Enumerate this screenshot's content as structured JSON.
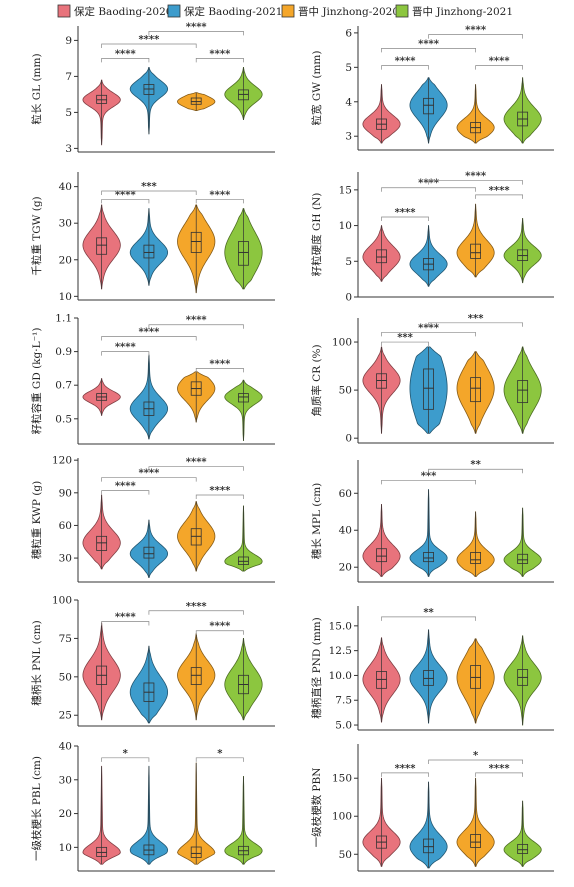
{
  "legend": {
    "items": [
      {
        "label": "保定 Baoding-2020",
        "color": "#e8737c"
      },
      {
        "label": "保定 Baoding-2021",
        "color": "#3d9ccc"
      },
      {
        "label": "晋中 Jinzhong-2020",
        "color": "#f4a62a"
      },
      {
        "label": "晋中 Jinzhong-2021",
        "color": "#8cc63f"
      }
    ]
  },
  "chart_data": [
    {
      "type": "violin",
      "ylabel": "粒长 GL (mm)",
      "ylim": [
        2.8,
        9.8
      ],
      "yticks": [
        3,
        5,
        7,
        9
      ],
      "groups": [
        {
          "name": "保定 Baoding-2020",
          "median": 5.7,
          "q1": 5.5,
          "q3": 5.95,
          "min": 3.2,
          "max": 6.8
        },
        {
          "name": "保定 Baoding-2021",
          "median": 6.3,
          "q1": 6.0,
          "q3": 6.55,
          "min": 3.8,
          "max": 7.5
        },
        {
          "name": "晋中 Jinzhong-2020",
          "median": 5.6,
          "q1": 5.45,
          "q3": 5.8,
          "min": 5.1,
          "max": 6.1
        },
        {
          "name": "晋中 Jinzhong-2021",
          "median": 6.0,
          "q1": 5.7,
          "q3": 6.25,
          "min": 4.6,
          "max": 7.5
        }
      ],
      "brackets": [
        {
          "from": 0,
          "to": 1,
          "y": 8.0,
          "label": "****"
        },
        {
          "from": 0,
          "to": 2,
          "y": 8.8,
          "label": "****"
        },
        {
          "from": 1,
          "to": 3,
          "y": 9.5,
          "label": "****"
        },
        {
          "from": 2,
          "to": 3,
          "y": 8.0,
          "label": "****"
        }
      ]
    },
    {
      "type": "violin",
      "ylabel": "粒宽 GW (mm)",
      "ylim": [
        2.6,
        6.2
      ],
      "yticks": [
        3,
        4,
        5,
        6
      ],
      "groups": [
        {
          "name": "保定 Baoding-2020",
          "median": 3.35,
          "q1": 3.2,
          "q3": 3.5,
          "min": 2.8,
          "max": 4.5
        },
        {
          "name": "保定 Baoding-2021",
          "median": 3.9,
          "q1": 3.65,
          "q3": 4.1,
          "min": 2.8,
          "max": 4.7
        },
        {
          "name": "晋中 Jinzhong-2020",
          "median": 3.25,
          "q1": 3.1,
          "q3": 3.4,
          "min": 2.8,
          "max": 4.5
        },
        {
          "name": "晋中 Jinzhong-2021",
          "median": 3.5,
          "q1": 3.3,
          "q3": 3.7,
          "min": 2.8,
          "max": 4.7
        }
      ],
      "brackets": [
        {
          "from": 0,
          "to": 1,
          "y": 5.05,
          "label": "****"
        },
        {
          "from": 0,
          "to": 2,
          "y": 5.55,
          "label": "****"
        },
        {
          "from": 1,
          "to": 3,
          "y": 5.95,
          "label": "****"
        },
        {
          "from": 2,
          "to": 3,
          "y": 5.05,
          "label": "****"
        }
      ]
    },
    {
      "type": "violin",
      "ylabel": "千粒重 TGW (g)",
      "ylim": [
        9,
        44
      ],
      "yticks": [
        10,
        20,
        30,
        40
      ],
      "groups": [
        {
          "name": "保定 Baoding-2020",
          "median": 24,
          "q1": 21.5,
          "q3": 26,
          "min": 12,
          "max": 35
        },
        {
          "name": "保定 Baoding-2021",
          "median": 22,
          "q1": 20.5,
          "q3": 24,
          "min": 13,
          "max": 34
        },
        {
          "name": "晋中 Jinzhong-2020",
          "median": 25,
          "q1": 22,
          "q3": 27.5,
          "min": 11,
          "max": 35
        },
        {
          "name": "晋中 Jinzhong-2021",
          "median": 22,
          "q1": 18.5,
          "q3": 25,
          "min": 12,
          "max": 34
        }
      ],
      "brackets": [
        {
          "from": 0,
          "to": 1,
          "y": 36.5,
          "label": "****"
        },
        {
          "from": 0,
          "to": 2,
          "y": 38.8,
          "label": "***"
        },
        {
          "from": 2,
          "to": 3,
          "y": 36.5,
          "label": "****"
        }
      ]
    },
    {
      "type": "violin",
      "ylabel": "籽粒硬度 GH (N)",
      "ylim": [
        0,
        17.5
      ],
      "yticks": [
        0,
        5,
        10,
        15
      ],
      "groups": [
        {
          "name": "保定 Baoding-2020",
          "median": 5.6,
          "q1": 4.8,
          "q3": 6.6,
          "min": 2.2,
          "max": 10
        },
        {
          "name": "保定 Baoding-2021",
          "median": 4.6,
          "q1": 3.8,
          "q3": 5.4,
          "min": 1.5,
          "max": 10
        },
        {
          "name": "晋中 Jinzhong-2020",
          "median": 6.2,
          "q1": 5.4,
          "q3": 7.4,
          "min": 2.8,
          "max": 13
        },
        {
          "name": "晋中 Jinzhong-2021",
          "median": 5.8,
          "q1": 5.1,
          "q3": 6.6,
          "min": 2.0,
          "max": 11
        }
      ],
      "brackets": [
        {
          "from": 0,
          "to": 1,
          "y": 11.2,
          "label": "****"
        },
        {
          "from": 0,
          "to": 2,
          "y": 15.3,
          "label": "****"
        },
        {
          "from": 1,
          "to": 3,
          "y": 16.3,
          "label": "****"
        },
        {
          "from": 2,
          "to": 3,
          "y": 14.3,
          "label": "****"
        }
      ]
    },
    {
      "type": "violin",
      "ylabel": "籽粒容重 GD (kg·L⁻¹)",
      "ylim": [
        0.35,
        1.1
      ],
      "yticks": [
        0.5,
        0.7,
        0.9,
        1.1
      ],
      "groups": [
        {
          "name": "保定 Baoding-2020",
          "median": 0.63,
          "q1": 0.61,
          "q3": 0.65,
          "min": 0.52,
          "max": 0.74
        },
        {
          "name": "保定 Baoding-2021",
          "median": 0.56,
          "q1": 0.52,
          "q3": 0.6,
          "min": 0.38,
          "max": 0.88
        },
        {
          "name": "晋中 Jinzhong-2020",
          "median": 0.68,
          "q1": 0.64,
          "q3": 0.72,
          "min": 0.48,
          "max": 0.78
        },
        {
          "name": "晋中 Jinzhong-2021",
          "median": 0.63,
          "q1": 0.6,
          "q3": 0.65,
          "min": 0.37,
          "max": 0.73
        }
      ],
      "brackets": [
        {
          "from": 0,
          "to": 1,
          "y": 0.9,
          "label": "****"
        },
        {
          "from": 0,
          "to": 2,
          "y": 0.99,
          "label": "****"
        },
        {
          "from": 1,
          "to": 3,
          "y": 1.06,
          "label": "****"
        },
        {
          "from": 2,
          "to": 3,
          "y": 0.8,
          "label": "****"
        }
      ]
    },
    {
      "type": "violin",
      "ylabel": "角质率 CR (%)",
      "ylim": [
        -5,
        125
      ],
      "yticks": [
        0,
        50,
        100
      ],
      "groups": [
        {
          "name": "保定 Baoding-2020",
          "median": 60,
          "q1": 52,
          "q3": 67,
          "min": 5,
          "max": 95
        },
        {
          "name": "保定 Baoding-2021",
          "median": 52,
          "q1": 30,
          "q3": 72,
          "min": 5,
          "max": 95
        },
        {
          "name": "晋中 Jinzhong-2020",
          "median": 52,
          "q1": 38,
          "q3": 63,
          "min": 5,
          "max": 90
        },
        {
          "name": "晋中 Jinzhong-2021",
          "median": 50,
          "q1": 37,
          "q3": 60,
          "min": 5,
          "max": 95
        }
      ],
      "brackets": [
        {
          "from": 0,
          "to": 1,
          "y": 100,
          "label": "***"
        },
        {
          "from": 0,
          "to": 2,
          "y": 110,
          "label": "****"
        },
        {
          "from": 1,
          "to": 3,
          "y": 120,
          "label": "***"
        }
      ]
    },
    {
      "type": "violin",
      "ylabel": "穗粒重 KWP (g)",
      "ylim": [
        8,
        122
      ],
      "yticks": [
        30,
        60,
        90,
        120
      ],
      "groups": [
        {
          "name": "保定 Baoding-2020",
          "median": 44,
          "q1": 37,
          "q3": 50,
          "min": 20,
          "max": 88
        },
        {
          "name": "保定 Baoding-2021",
          "median": 34,
          "q1": 30,
          "q3": 40,
          "min": 12,
          "max": 65
        },
        {
          "name": "晋中 Jinzhong-2020",
          "median": 50,
          "q1": 42,
          "q3": 57,
          "min": 18,
          "max": 82
        },
        {
          "name": "晋中 Jinzhong-2021",
          "median": 27,
          "q1": 24,
          "q3": 31,
          "min": 18,
          "max": 78
        }
      ],
      "brackets": [
        {
          "from": 0,
          "to": 1,
          "y": 92,
          "label": "****"
        },
        {
          "from": 0,
          "to": 2,
          "y": 104,
          "label": "****"
        },
        {
          "from": 1,
          "to": 3,
          "y": 114,
          "label": "****"
        },
        {
          "from": 2,
          "to": 3,
          "y": 88,
          "label": "****"
        }
      ]
    },
    {
      "type": "violin",
      "ylabel": "穗长 MPL (cm)",
      "ylim": [
        12,
        78
      ],
      "yticks": [
        20,
        40,
        60
      ],
      "groups": [
        {
          "name": "保定 Baoding-2020",
          "median": 26,
          "q1": 23,
          "q3": 30,
          "min": 15,
          "max": 54
        },
        {
          "name": "保定 Baoding-2021",
          "median": 25,
          "q1": 23,
          "q3": 28,
          "min": 15,
          "max": 62
        },
        {
          "name": "晋中 Jinzhong-2020",
          "median": 24,
          "q1": 22,
          "q3": 28,
          "min": 15,
          "max": 50
        },
        {
          "name": "晋中 Jinzhong-2021",
          "median": 24,
          "q1": 22,
          "q3": 27,
          "min": 15,
          "max": 52
        }
      ],
      "brackets": [
        {
          "from": 0,
          "to": 2,
          "y": 67,
          "label": "***"
        },
        {
          "from": 1,
          "to": 3,
          "y": 73,
          "label": "**"
        }
      ]
    },
    {
      "type": "violin",
      "ylabel": "穗柄长 PNL (cm)",
      "ylim": [
        18,
        100
      ],
      "yticks": [
        25,
        50,
        75,
        100
      ],
      "groups": [
        {
          "name": "保定 Baoding-2020",
          "median": 51,
          "q1": 45,
          "q3": 57,
          "min": 22,
          "max": 85
        },
        {
          "name": "保定 Baoding-2021",
          "median": 40,
          "q1": 34,
          "q3": 46,
          "min": 20,
          "max": 70
        },
        {
          "name": "晋中 Jinzhong-2020",
          "median": 51,
          "q1": 45,
          "q3": 56,
          "min": 22,
          "max": 78
        },
        {
          "name": "晋中 Jinzhong-2021",
          "median": 45,
          "q1": 39,
          "q3": 51,
          "min": 22,
          "max": 75
        }
      ],
      "brackets": [
        {
          "from": 0,
          "to": 1,
          "y": 86,
          "label": "****"
        },
        {
          "from": 1,
          "to": 3,
          "y": 93,
          "label": "****"
        },
        {
          "from": 2,
          "to": 3,
          "y": 80,
          "label": "****"
        }
      ]
    },
    {
      "type": "violin",
      "ylabel": "穗柄直径 PND (mm)",
      "ylim": [
        4.5,
        17
      ],
      "yticks": [
        5,
        7.5,
        10,
        12.5,
        15
      ],
      "tick_labels": [
        "5.0",
        "7.5",
        "10.0",
        "12.5",
        "15.0"
      ],
      "groups": [
        {
          "name": "保定 Baoding-2020",
          "median": 9.6,
          "q1": 8.7,
          "q3": 10.4,
          "min": 5.3,
          "max": 13.8
        },
        {
          "name": "保定 Baoding-2021",
          "median": 9.7,
          "q1": 9.0,
          "q3": 10.5,
          "min": 5.2,
          "max": 14.6
        },
        {
          "name": "晋中 Jinzhong-2020",
          "median": 9.8,
          "q1": 8.7,
          "q3": 11.0,
          "min": 5.2,
          "max": 13.7
        },
        {
          "name": "晋中 Jinzhong-2021",
          "median": 9.8,
          "q1": 9.0,
          "q3": 10.6,
          "min": 5.0,
          "max": 14.0
        }
      ],
      "brackets": [
        {
          "from": 0,
          "to": 2,
          "y": 15.9,
          "label": "**"
        }
      ]
    },
    {
      "type": "violin",
      "ylabel": "一级枝梗长 PBL (cm)",
      "ylim": [
        3,
        40
      ],
      "yticks": [
        10,
        20,
        30,
        40
      ],
      "groups": [
        {
          "name": "保定 Baoding-2020",
          "median": 8.5,
          "q1": 7.3,
          "q3": 10,
          "min": 5,
          "max": 34
        },
        {
          "name": "保定 Baoding-2021",
          "median": 9.2,
          "q1": 7.8,
          "q3": 10.7,
          "min": 5,
          "max": 34
        },
        {
          "name": "晋中 Jinzhong-2020",
          "median": 8.2,
          "q1": 7.0,
          "q3": 10.1,
          "min": 5,
          "max": 35
        },
        {
          "name": "晋中 Jinzhong-2021",
          "median": 9.0,
          "q1": 7.8,
          "q3": 10.3,
          "min": 5,
          "max": 31
        }
      ],
      "brackets": [
        {
          "from": 0,
          "to": 1,
          "y": 36.5,
          "label": "*"
        },
        {
          "from": 2,
          "to": 3,
          "y": 36.5,
          "label": "*"
        }
      ]
    },
    {
      "type": "violin",
      "ylabel": "一级枝梗数 PBN",
      "ylim": [
        28,
        195
      ],
      "yticks": [
        50,
        100,
        150
      ],
      "groups": [
        {
          "name": "保定 Baoding-2020",
          "median": 66,
          "q1": 58,
          "q3": 74,
          "min": 34,
          "max": 150
        },
        {
          "name": "保定 Baoding-2021",
          "median": 60,
          "q1": 52,
          "q3": 70,
          "min": 32,
          "max": 145
        },
        {
          "name": "晋中 Jinzhong-2020",
          "median": 66,
          "q1": 59,
          "q3": 76,
          "min": 34,
          "max": 150
        },
        {
          "name": "晋中 Jinzhong-2021",
          "median": 56,
          "q1": 51,
          "q3": 63,
          "min": 34,
          "max": 120
        }
      ],
      "brackets": [
        {
          "from": 0,
          "to": 1,
          "y": 157,
          "label": "****"
        },
        {
          "from": 1,
          "to": 3,
          "y": 174,
          "label": "*"
        },
        {
          "from": 2,
          "to": 3,
          "y": 157,
          "label": "****"
        }
      ]
    }
  ]
}
